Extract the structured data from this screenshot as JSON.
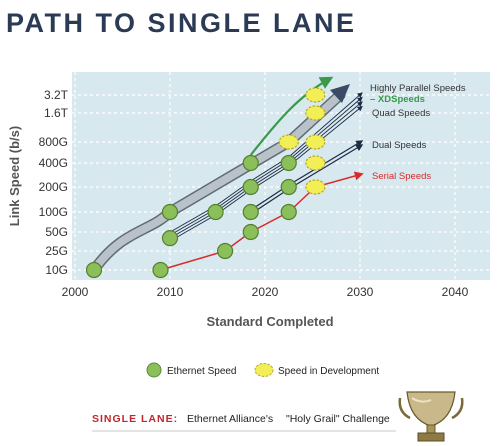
{
  "page": {
    "title": "PATH TO SINGLE LANE"
  },
  "footer": {
    "label": "SINGLE LANE:",
    "text1": "Ethernet Alliance's",
    "text2": "\"Holy Grail\" Challenge"
  },
  "legend": {
    "ethernet_speed": "Ethernet Speed",
    "in_development": "Speed in Development"
  },
  "chart_data": {
    "type": "scatter",
    "xlabel": "Standard Completed",
    "ylabel": "Link Speed (b/s)",
    "xlim": [
      1998,
      2044
    ],
    "x_ticks": [
      2000,
      2010,
      2020,
      2030,
      2040
    ],
    "y_scale": "log",
    "y_ticks": [
      {
        "label": "10G",
        "value": 10
      },
      {
        "label": "25G",
        "value": 25
      },
      {
        "label": "50G",
        "value": 50
      },
      {
        "label": "100G",
        "value": 100
      },
      {
        "label": "200G",
        "value": 200
      },
      {
        "label": "400G",
        "value": 400
      },
      {
        "label": "800G",
        "value": 800
      },
      {
        "label": "1.6T",
        "value": 1600
      },
      {
        "label": "3.2T",
        "value": 3200
      }
    ],
    "grid": true,
    "colors": {
      "plot_bg": "#d7e8ef",
      "established": "#8bbf5a",
      "development": "#f2ee55",
      "serial": "#d82a2a",
      "xd": "#3a9a4a",
      "trend": "#9aa3ad"
    },
    "series": [
      {
        "name": "Highly Parallel Speeds",
        "sublabel": "– XDSpeeds",
        "style": "trend",
        "points": [
          {
            "x": 2002,
            "y": 10,
            "status": "established"
          },
          {
            "x": 2010,
            "y": 100,
            "status": "established"
          },
          {
            "x": 2018.5,
            "y": 400,
            "status": "established"
          },
          {
            "x": 2022.5,
            "y": 800,
            "status": "development"
          },
          {
            "x": 2025.3,
            "y": 3200,
            "status": "development"
          }
        ]
      },
      {
        "name": "Quad Speeds",
        "style": "quad",
        "points": [
          {
            "x": 2010,
            "y": 40,
            "status": "established"
          },
          {
            "x": 2014.8,
            "y": 100,
            "status": "established"
          },
          {
            "x": 2018.5,
            "y": 200,
            "status": "established"
          },
          {
            "x": 2022.5,
            "y": 400,
            "status": "established"
          },
          {
            "x": 2025.3,
            "y": 1600,
            "status": "development"
          }
        ]
      },
      {
        "name": "Dual Speeds",
        "style": "dual",
        "points": [
          {
            "x": 2018.5,
            "y": 100,
            "status": "established"
          },
          {
            "x": 2022.5,
            "y": 200,
            "status": "established"
          },
          {
            "x": 2025.3,
            "y": 800,
            "status": "development"
          }
        ]
      },
      {
        "name": "Serial Speeds",
        "style": "serial",
        "points": [
          {
            "x": 2009,
            "y": 10,
            "status": "established"
          },
          {
            "x": 2015.8,
            "y": 25,
            "status": "established"
          },
          {
            "x": 2018.5,
            "y": 50,
            "status": "established"
          },
          {
            "x": 2022.5,
            "y": 100,
            "status": "established"
          },
          {
            "x": 2025.3,
            "y": 200,
            "status": "development"
          },
          {
            "x": 2025.3,
            "y": 400,
            "status": "development"
          }
        ]
      }
    ]
  }
}
